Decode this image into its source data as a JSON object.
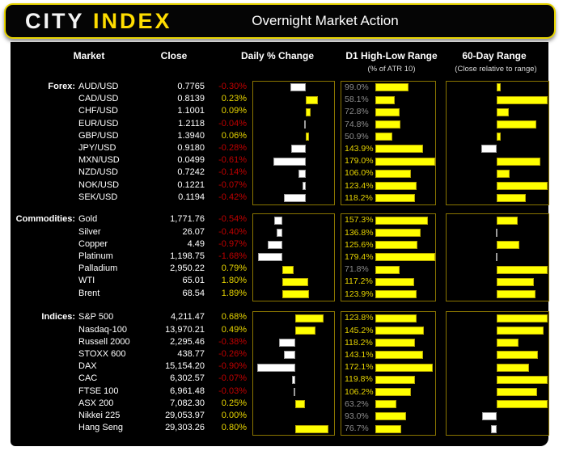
{
  "header": {
    "logo_primary": "CITY",
    "logo_secondary": "INDEX",
    "title": "Overnight Market Action"
  },
  "columns": {
    "market": "Market",
    "close": "Close",
    "daily": "Daily % Change",
    "d1": "D1 High-Low Range",
    "d1_sub": "(% of ATR 10)",
    "range60": "60-Day Range",
    "range60_sub": "(Close relative to range)"
  },
  "colors": {
    "positive_text": "#e8d500",
    "negative_text": "#c00000",
    "bar_positive": "#ffff00",
    "bar_negative": "#ffffff",
    "d1_label_high": "#e8d500",
    "d1_label_low": "#8c8c8c",
    "panel_border": "#8a7500"
  },
  "chart_data": {
    "type": "table",
    "title": "Overnight Market Action",
    "bar_columns": [
      {
        "key": "daily",
        "type": "bar",
        "label": "Daily % Change",
        "note": "yellow = positive, white = negative, per-section axis"
      },
      {
        "key": "d1",
        "type": "bar",
        "label": "D1 High-Low Range (% of ATR 10)",
        "axis": [
          0,
          180
        ]
      },
      {
        "key": "range60",
        "type": "bar",
        "label": "60-Day Range (Close relative to range)",
        "axis": [
          -1,
          1
        ],
        "note": "baseline = range midpoint"
      }
    ],
    "sections": [
      {
        "label": "Forex:",
        "daily_axis": [
          -1.0,
          0.5
        ],
        "rows": [
          {
            "market": "AUD/USD",
            "close": "0.7765",
            "daily_label": "-0.30%",
            "daily": -0.3,
            "d1_label": "99.0%",
            "d1": 99.0,
            "range60": 0.09
          },
          {
            "market": "CAD/USD",
            "close": "0.8139",
            "daily_label": "0.23%",
            "daily": 0.23,
            "d1_label": "58.1%",
            "d1": 58.1,
            "range60": 1.0
          },
          {
            "market": "CHF/USD",
            "close": "1.1001",
            "daily_label": "0.09%",
            "daily": 0.09,
            "d1_label": "72.8%",
            "d1": 72.8,
            "range60": 0.25
          },
          {
            "market": "EUR/USD",
            "close": "1.2118",
            "daily_label": "-0.04%",
            "daily": -0.04,
            "d1_label": "74.8%",
            "d1": 74.8,
            "range60": 0.78
          },
          {
            "market": "GBP/USD",
            "close": "1.3940",
            "daily_label": "0.06%",
            "daily": 0.06,
            "d1_label": "50.9%",
            "d1": 50.9,
            "range60": 0.09
          },
          {
            "market": "JPY/USD",
            "close": "0.9180",
            "daily_label": "-0.28%",
            "daily": -0.28,
            "d1_label": "143.9%",
            "d1": 143.9,
            "range60": -0.32
          },
          {
            "market": "MXN/USD",
            "close": "0.0499",
            "daily_label": "-0.61%",
            "daily": -0.61,
            "d1_label": "179.0%",
            "d1": 179.0,
            "range60": 0.87
          },
          {
            "market": "NZD/USD",
            "close": "0.7242",
            "daily_label": "-0.14%",
            "daily": -0.14,
            "d1_label": "106.0%",
            "d1": 106.0,
            "range60": 0.26
          },
          {
            "market": "NOK/USD",
            "close": "0.1221",
            "daily_label": "-0.07%",
            "daily": -0.07,
            "d1_label": "123.4%",
            "d1": 123.4,
            "range60": 1.0
          },
          {
            "market": "SEK/USD",
            "close": "0.1194",
            "daily_label": "-0.42%",
            "daily": -0.42,
            "d1_label": "118.2%",
            "d1": 118.2,
            "range60": 0.57
          }
        ]
      },
      {
        "label": "Commodities:",
        "daily_axis": [
          -2.0,
          3.5
        ],
        "rows": [
          {
            "market": "Gold",
            "close": "1,771.76",
            "daily_label": "-0.54%",
            "daily": -0.54,
            "d1_label": "157.3%",
            "d1": 157.3,
            "range60": 0.42
          },
          {
            "market": "Silver",
            "close": "26.07",
            "daily_label": "-0.40%",
            "daily": -0.4,
            "d1_label": "136.8%",
            "d1": 136.8,
            "range60": -0.02
          },
          {
            "market": "Copper",
            "close": "4.49",
            "daily_label": "-0.97%",
            "daily": -0.97,
            "d1_label": "125.6%",
            "d1": 125.6,
            "range60": 0.45
          },
          {
            "market": "Platinum",
            "close": "1,198.75",
            "daily_label": "-1.68%",
            "daily": -1.68,
            "d1_label": "179.4%",
            "d1": 179.4,
            "range60": -0.02
          },
          {
            "market": "Palladium",
            "close": "2,950.22",
            "daily_label": "0.79%",
            "daily": 0.79,
            "d1_label": "71.8%",
            "d1": 71.8,
            "range60": 1.0
          },
          {
            "market": "WTI",
            "close": "65.01",
            "daily_label": "1.80%",
            "daily": 1.8,
            "d1_label": "117.2%",
            "d1": 117.2,
            "range60": 0.74
          },
          {
            "market": "Brent",
            "close": "68.54",
            "daily_label": "1.89%",
            "daily": 1.89,
            "d1_label": "123.9%",
            "d1": 123.9,
            "range60": 0.76
          }
        ]
      },
      {
        "label": "Indices:",
        "daily_axis": [
          -1.0,
          0.9
        ],
        "rows": [
          {
            "market": "S&P 500",
            "close": "4,211.47",
            "daily_label": "0.68%",
            "daily": 0.68,
            "d1_label": "123.8%",
            "d1": 123.8,
            "range60": 1.0
          },
          {
            "market": "Nasdaq-100",
            "close": "13,970.21",
            "daily_label": "0.49%",
            "daily": 0.49,
            "d1_label": "145.2%",
            "d1": 145.2,
            "range60": 0.92
          },
          {
            "market": "Russell 2000",
            "close": "2,295.46",
            "daily_label": "-0.38%",
            "daily": -0.38,
            "d1_label": "118.2%",
            "d1": 118.2,
            "range60": 0.43
          },
          {
            "market": "STOXX 600",
            "close": "438.77",
            "daily_label": "-0.26%",
            "daily": -0.26,
            "d1_label": "143.1%",
            "d1": 143.1,
            "range60": 0.82
          },
          {
            "market": "DAX",
            "close": "15,154.20",
            "daily_label": "-0.90%",
            "daily": -0.9,
            "d1_label": "172.1%",
            "d1": 172.1,
            "range60": 0.64
          },
          {
            "market": "CAC",
            "close": "6,302.57",
            "daily_label": "-0.07%",
            "daily": -0.07,
            "d1_label": "119.8%",
            "d1": 119.8,
            "range60": 1.0
          },
          {
            "market": "FTSE 100",
            "close": "6,961.48",
            "daily_label": "-0.03%",
            "daily": -0.03,
            "d1_label": "106.2%",
            "d1": 106.2,
            "range60": 0.8
          },
          {
            "market": "ASX 200",
            "close": "7,082.30",
            "daily_label": "0.25%",
            "daily": 0.25,
            "d1_label": "63.2%",
            "d1": 63.2,
            "range60": 1.0
          },
          {
            "market": "Nikkei 225",
            "close": "29,053.97",
            "daily_label": "0.00%",
            "daily": 0.0,
            "d1_label": "93.0%",
            "d1": 93.0,
            "range60": -0.31
          },
          {
            "market": "Hang Seng",
            "close": "29,303.26",
            "daily_label": "0.80%",
            "daily": 0.8,
            "d1_label": "76.7%",
            "d1": 76.7,
            "range60": -0.11
          }
        ]
      }
    ]
  }
}
